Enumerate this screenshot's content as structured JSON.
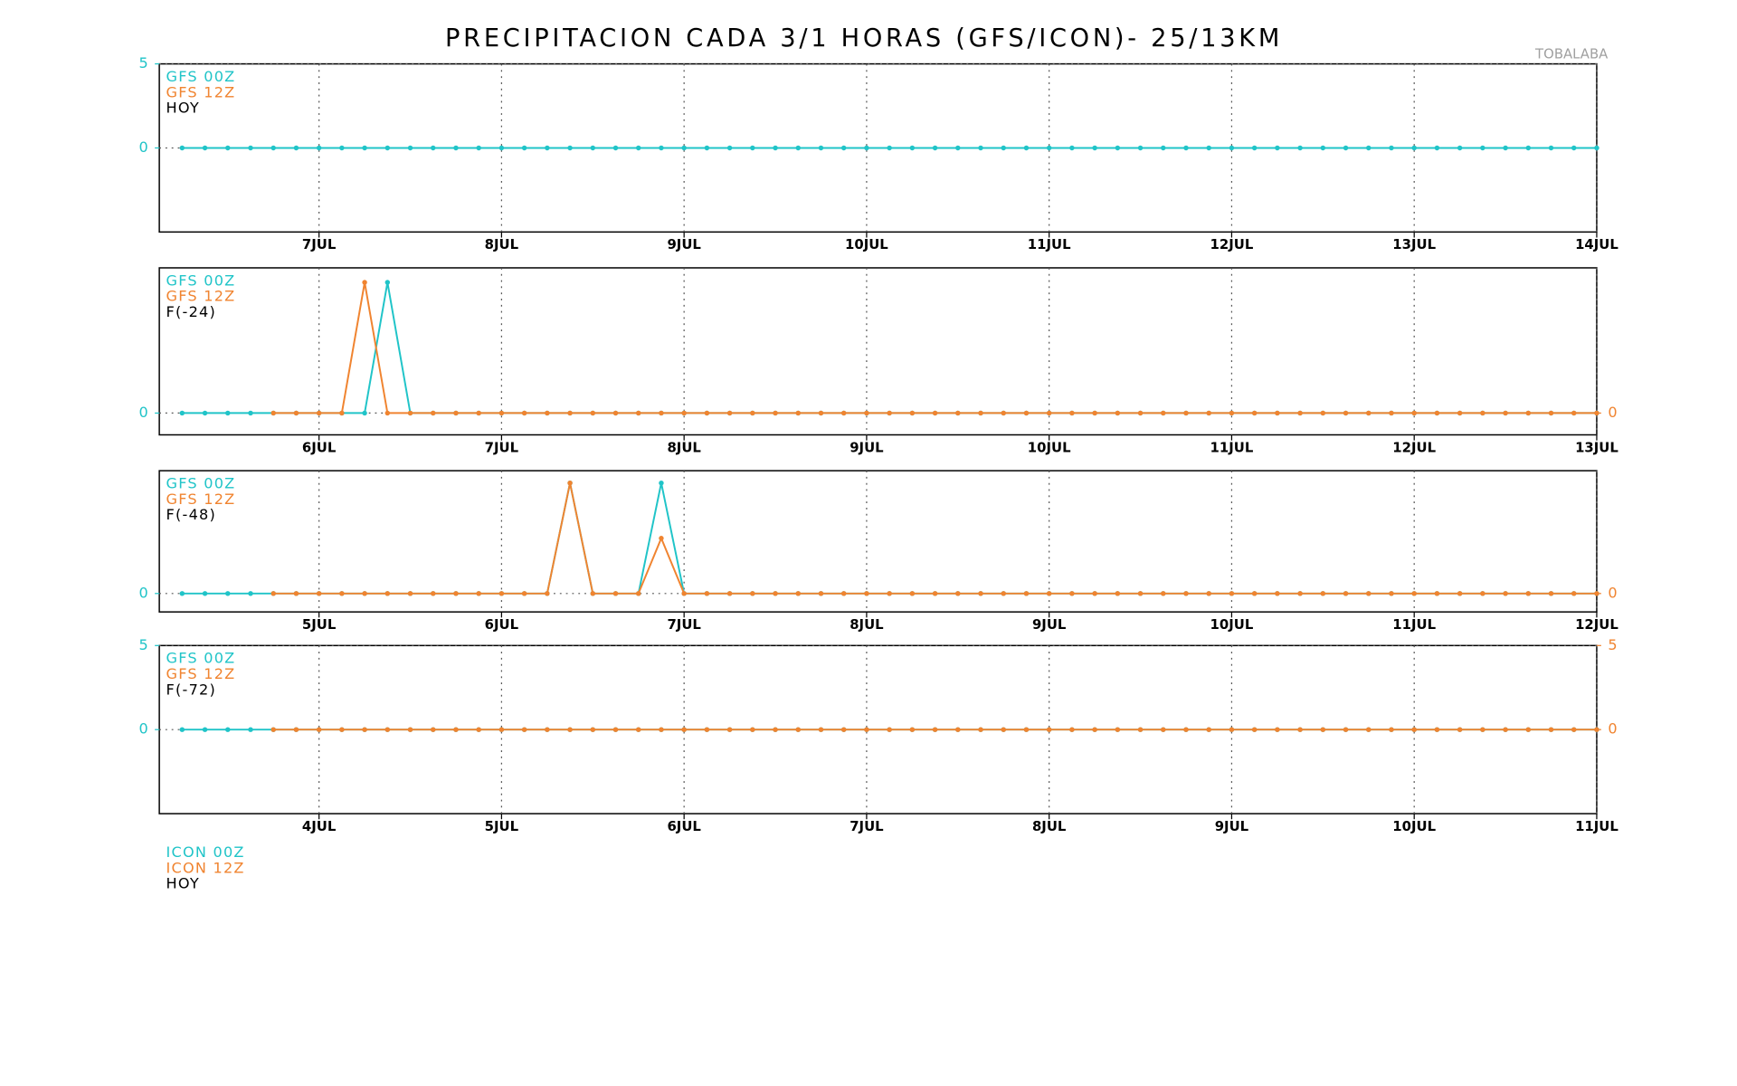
{
  "title": "PRECIPITACION CADA 3/1 HORAS (GFS/ICON)- 25/13KM",
  "station": "TOBALABA",
  "footer_legend": [
    {
      "text": "ICON 00Z",
      "color": "#20c4c8"
    },
    {
      "text": "ICON 12Z",
      "color": "#f08430"
    },
    {
      "text": "HOY",
      "color": "#000000"
    }
  ],
  "chart_data": [
    {
      "type": "line",
      "label": "HOY",
      "grid": true,
      "xlim": [
        6.125,
        14
      ],
      "ylim": [
        -5,
        5
      ],
      "yticks": [
        5,
        0
      ],
      "xticks": [
        {
          "value": 7,
          "label": "7JUL"
        },
        {
          "value": 8,
          "label": "8JUL"
        },
        {
          "value": 9,
          "label": "9JUL"
        },
        {
          "value": 10,
          "label": "10JUL"
        },
        {
          "value": 11,
          "label": "11JUL"
        },
        {
          "value": 12,
          "label": "12JUL"
        },
        {
          "value": 13,
          "label": "13JUL"
        },
        {
          "value": 14,
          "label": "14JUL"
        }
      ],
      "x": [
        6.25,
        6.375,
        6.5,
        6.625,
        6.75,
        6.875,
        7,
        7.125,
        7.25,
        7.375,
        7.5,
        7.625,
        7.75,
        7.875,
        8,
        8.125,
        8.25,
        8.375,
        8.5,
        8.625,
        8.75,
        8.875,
        9,
        9.125,
        9.25,
        9.375,
        9.5,
        9.625,
        9.75,
        9.875,
        10,
        10.125,
        10.25,
        10.375,
        10.5,
        10.625,
        10.75,
        10.875,
        11,
        11.125,
        11.25,
        11.375,
        11.5,
        11.625,
        11.75,
        11.875,
        12,
        12.125,
        12.25,
        12.375,
        12.5,
        12.625,
        12.75,
        12.875,
        13,
        13.125,
        13.25,
        13.375,
        13.5,
        13.625,
        13.75,
        13.875,
        14
      ],
      "series": [
        {
          "name": "GFS 00Z",
          "color": "#20c4c8",
          "values": [
            0,
            0,
            0,
            0,
            0,
            0,
            0,
            0,
            0,
            0,
            0,
            0,
            0,
            0,
            0,
            0,
            0,
            0,
            0,
            0,
            0,
            0,
            0,
            0,
            0,
            0,
            0,
            0,
            0,
            0,
            0,
            0,
            0,
            0,
            0,
            0,
            0,
            0,
            0,
            0,
            0,
            0,
            0,
            0,
            0,
            0,
            0,
            0,
            0,
            0,
            0,
            0,
            0,
            0,
            0,
            0,
            0,
            0,
            0,
            0,
            0,
            0,
            0
          ]
        },
        {
          "name": "GFS 12Z",
          "color": "#f08430",
          "values": [
            null,
            null,
            null,
            null,
            null,
            null,
            null,
            null,
            null,
            null,
            null,
            null,
            null,
            null,
            null,
            null,
            null,
            null,
            null,
            null,
            null,
            null,
            null,
            null,
            null,
            null,
            null,
            null,
            null,
            null,
            null,
            null,
            null,
            null,
            null,
            null,
            null,
            null,
            null,
            null,
            null,
            null,
            null,
            null,
            null,
            null,
            null,
            null,
            null,
            null,
            null,
            null,
            null,
            null,
            null,
            null,
            null,
            null,
            null,
            null,
            null,
            null,
            null
          ]
        }
      ]
    },
    {
      "type": "line",
      "label": "F(-24)",
      "grid": true,
      "xlim": [
        5.125,
        13
      ],
      "ylim": [
        -0.15,
        1
      ],
      "yticks": [
        0
      ],
      "y2lim": [
        -0.15,
        1
      ],
      "y2ticks": [
        0
      ],
      "xticks": [
        {
          "value": 6,
          "label": "6JUL"
        },
        {
          "value": 7,
          "label": "7JUL"
        },
        {
          "value": 8,
          "label": "8JUL"
        },
        {
          "value": 9,
          "label": "9JUL"
        },
        {
          "value": 10,
          "label": "10JUL"
        },
        {
          "value": 11,
          "label": "11JUL"
        },
        {
          "value": 12,
          "label": "12JUL"
        },
        {
          "value": 13,
          "label": "13JUL"
        }
      ],
      "x": [
        5.25,
        5.375,
        5.5,
        5.625,
        5.75,
        5.875,
        6,
        6.125,
        6.25,
        6.375,
        6.5,
        6.625,
        6.75,
        6.875,
        7,
        7.125,
        7.25,
        7.375,
        7.5,
        7.625,
        7.75,
        7.875,
        8,
        8.125,
        8.25,
        8.375,
        8.5,
        8.625,
        8.75,
        8.875,
        9,
        9.125,
        9.25,
        9.375,
        9.5,
        9.625,
        9.75,
        9.875,
        10,
        10.125,
        10.25,
        10.375,
        10.5,
        10.625,
        10.75,
        10.875,
        11,
        11.125,
        11.25,
        11.375,
        11.5,
        11.625,
        11.75,
        11.875,
        12,
        12.125,
        12.25,
        12.375,
        12.5,
        12.625,
        12.75,
        12.875,
        13
      ],
      "series": [
        {
          "name": "GFS 00Z",
          "color": "#20c4c8",
          "values": [
            0,
            0,
            0,
            0,
            0,
            0,
            0,
            0,
            0,
            0.9,
            0,
            0,
            0,
            0,
            0,
            0,
            0,
            0,
            0,
            0,
            0,
            0,
            0,
            0,
            0,
            0,
            0,
            0,
            0,
            0,
            0,
            0,
            0,
            0,
            0,
            0,
            0,
            0,
            0,
            0,
            0,
            0,
            0,
            0,
            0,
            0,
            0,
            0,
            0,
            0,
            0,
            0,
            0,
            0,
            0,
            0,
            0,
            0,
            0,
            0,
            0,
            0,
            0
          ]
        },
        {
          "name": "GFS 12Z",
          "color": "#f08430",
          "axis": "y2",
          "values": [
            null,
            null,
            null,
            null,
            0,
            0,
            0,
            0,
            0.9,
            0,
            0,
            0,
            0,
            0,
            0,
            0,
            0,
            0,
            0,
            0,
            0,
            0,
            0,
            0,
            0,
            0,
            0,
            0,
            0,
            0,
            0,
            0,
            0,
            0,
            0,
            0,
            0,
            0,
            0,
            0,
            0,
            0,
            0,
            0,
            0,
            0,
            0,
            0,
            0,
            0,
            0,
            0,
            0,
            0,
            0,
            0,
            0,
            0,
            0,
            0,
            0,
            0,
            0
          ]
        }
      ]
    },
    {
      "type": "line",
      "label": "F(-48)",
      "grid": true,
      "xlim": [
        4.125,
        12
      ],
      "ylim": [
        -0.15,
        1
      ],
      "yticks": [
        0
      ],
      "y2lim": [
        -0.15,
        1
      ],
      "y2ticks": [
        0
      ],
      "xticks": [
        {
          "value": 5,
          "label": "5JUL"
        },
        {
          "value": 6,
          "label": "6JUL"
        },
        {
          "value": 7,
          "label": "7JUL"
        },
        {
          "value": 8,
          "label": "8JUL"
        },
        {
          "value": 9,
          "label": "9JUL"
        },
        {
          "value": 10,
          "label": "10JUL"
        },
        {
          "value": 11,
          "label": "11JUL"
        },
        {
          "value": 12,
          "label": "12JUL"
        }
      ],
      "x": [
        4.25,
        4.375,
        4.5,
        4.625,
        4.75,
        4.875,
        5,
        5.125,
        5.25,
        5.375,
        5.5,
        5.625,
        5.75,
        5.875,
        6,
        6.125,
        6.25,
        6.375,
        6.5,
        6.625,
        6.75,
        6.875,
        7,
        7.125,
        7.25,
        7.375,
        7.5,
        7.625,
        7.75,
        7.875,
        8,
        8.125,
        8.25,
        8.375,
        8.5,
        8.625,
        8.75,
        8.875,
        9,
        9.125,
        9.25,
        9.375,
        9.5,
        9.625,
        9.75,
        9.875,
        10,
        10.125,
        10.25,
        10.375,
        10.5,
        10.625,
        10.75,
        10.875,
        11,
        11.125,
        11.25,
        11.375,
        11.5,
        11.625,
        11.75,
        11.875,
        12
      ],
      "series": [
        {
          "name": "GFS 00Z",
          "color": "#20c4c8",
          "values": [
            0,
            0,
            0,
            0,
            0,
            0,
            0,
            0,
            0,
            0,
            0,
            0,
            0,
            0,
            0,
            0,
            0,
            0.9,
            0,
            0,
            0,
            0.9,
            0,
            0,
            0,
            0,
            0,
            0,
            0,
            0,
            0,
            0,
            0,
            0,
            0,
            0,
            0,
            0,
            0,
            0,
            0,
            0,
            0,
            0,
            0,
            0,
            0,
            0,
            0,
            0,
            0,
            0,
            0,
            0,
            0,
            0,
            0,
            0,
            0,
            0,
            0,
            0,
            0
          ]
        },
        {
          "name": "GFS 12Z",
          "color": "#f08430",
          "axis": "y2",
          "values": [
            null,
            null,
            null,
            null,
            0,
            0,
            0,
            0,
            0,
            0,
            0,
            0,
            0,
            0,
            0,
            0,
            0,
            0.9,
            0,
            0,
            0,
            0.45,
            0,
            0,
            0,
            0,
            0,
            0,
            0,
            0,
            0,
            0,
            0,
            0,
            0,
            0,
            0,
            0,
            0,
            0,
            0,
            0,
            0,
            0,
            0,
            0,
            0,
            0,
            0,
            0,
            0,
            0,
            0,
            0,
            0,
            0,
            0,
            0,
            0,
            0,
            0,
            0,
            0
          ]
        }
      ]
    },
    {
      "type": "line",
      "label": "F(-72)",
      "grid": true,
      "xlim": [
        3.125,
        11
      ],
      "ylim": [
        -5,
        5
      ],
      "yticks": [
        5,
        0
      ],
      "y2lim": [
        -5,
        5
      ],
      "y2ticks": [
        5,
        0
      ],
      "xticks": [
        {
          "value": 4,
          "label": "4JUL"
        },
        {
          "value": 5,
          "label": "5JUL"
        },
        {
          "value": 6,
          "label": "6JUL"
        },
        {
          "value": 7,
          "label": "7JUL"
        },
        {
          "value": 8,
          "label": "8JUL"
        },
        {
          "value": 9,
          "label": "9JUL"
        },
        {
          "value": 10,
          "label": "10JUL"
        },
        {
          "value": 11,
          "label": "11JUL"
        }
      ],
      "x": [
        3.25,
        3.375,
        3.5,
        3.625,
        3.75,
        3.875,
        4,
        4.125,
        4.25,
        4.375,
        4.5,
        4.625,
        4.75,
        4.875,
        5,
        5.125,
        5.25,
        5.375,
        5.5,
        5.625,
        5.75,
        5.875,
        6,
        6.125,
        6.25,
        6.375,
        6.5,
        6.625,
        6.75,
        6.875,
        7,
        7.125,
        7.25,
        7.375,
        7.5,
        7.625,
        7.75,
        7.875,
        8,
        8.125,
        8.25,
        8.375,
        8.5,
        8.625,
        8.75,
        8.875,
        9,
        9.125,
        9.25,
        9.375,
        9.5,
        9.625,
        9.75,
        9.875,
        10,
        10.125,
        10.25,
        10.375,
        10.5,
        10.625,
        10.75,
        10.875,
        11
      ],
      "series": [
        {
          "name": "GFS 00Z",
          "color": "#20c4c8",
          "values": [
            0,
            0,
            0,
            0,
            0,
            0,
            0,
            0,
            0,
            0,
            0,
            0,
            0,
            0,
            0,
            0,
            0,
            0,
            0,
            0,
            0,
            0,
            0,
            0,
            0,
            0,
            0,
            0,
            0,
            0,
            0,
            0,
            0,
            0,
            0,
            0,
            0,
            0,
            0,
            0,
            0,
            0,
            0,
            0,
            0,
            0,
            0,
            0,
            0,
            0,
            0,
            0,
            0,
            0,
            0,
            0,
            0,
            0,
            0,
            0,
            0,
            0,
            0
          ]
        },
        {
          "name": "GFS 12Z",
          "color": "#f08430",
          "axis": "y2",
          "values": [
            null,
            null,
            null,
            null,
            0,
            0,
            0,
            0,
            0,
            0,
            0,
            0,
            0,
            0,
            0,
            0,
            0,
            0,
            0,
            0,
            0,
            0,
            0,
            0,
            0,
            0,
            0,
            0,
            0,
            0,
            0,
            0,
            0,
            0,
            0,
            0,
            0,
            0,
            0,
            0,
            0,
            0,
            0,
            0,
            0,
            0,
            0,
            0,
            0,
            0,
            0,
            0,
            0,
            0,
            0,
            0,
            0,
            0,
            0,
            0,
            0,
            0,
            0
          ]
        }
      ]
    }
  ]
}
